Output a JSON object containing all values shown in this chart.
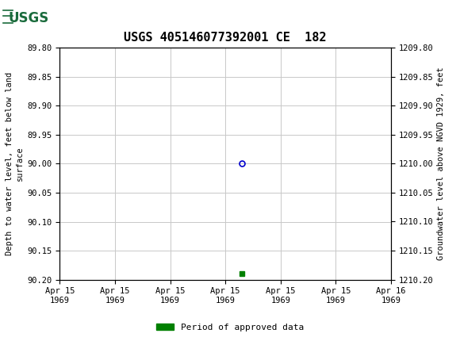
{
  "title": "USGS 405146077392001 CE  182",
  "header_bg_color": "#1a6b3c",
  "ylabel_left": "Depth to water level, feet below land\nsurface",
  "ylabel_right": "Groundwater level above NGVD 1929, feet",
  "ylim_left": [
    89.8,
    90.2
  ],
  "ylim_right": [
    1209.8,
    1210.2
  ],
  "xlim": [
    0,
    6
  ],
  "yticks_left": [
    89.8,
    89.85,
    89.9,
    89.95,
    90.0,
    90.05,
    90.1,
    90.15,
    90.2
  ],
  "yticks_right": [
    1210.2,
    1210.15,
    1210.1,
    1210.05,
    1210.0,
    1209.95,
    1209.9,
    1209.85,
    1209.8
  ],
  "xtick_labels": [
    "Apr 15\n1969",
    "Apr 15\n1969",
    "Apr 15\n1969",
    "Apr 15\n1969",
    "Apr 15\n1969",
    "Apr 15\n1969",
    "Apr 16\n1969"
  ],
  "data_point_x": 3.3,
  "data_point_y": 90.0,
  "data_point_color": "#0000cc",
  "green_bar_x": 3.3,
  "green_bar_y": 90.19,
  "green_color": "#008000",
  "legend_label": "Period of approved data",
  "grid_color": "#c8c8c8",
  "background_color": "#ffffff",
  "title_fontsize": 11,
  "axis_label_fontsize": 7.5,
  "tick_fontsize": 7.5,
  "legend_fontsize": 8
}
